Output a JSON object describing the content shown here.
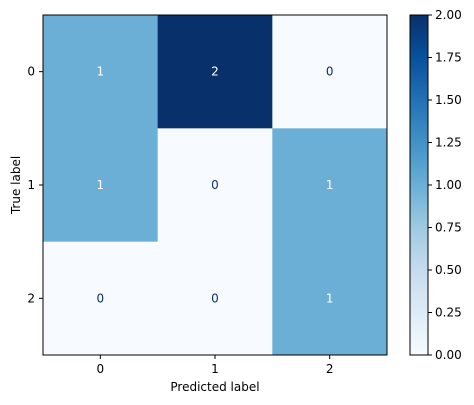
{
  "chart_data": {
    "type": "heatmap",
    "title": "",
    "xlabel": "Predicted label",
    "ylabel": "True label",
    "x_categories": [
      "0",
      "1",
      "2"
    ],
    "y_categories": [
      "0",
      "1",
      "2"
    ],
    "values": [
      [
        1,
        2,
        0
      ],
      [
        1,
        0,
        1
      ],
      [
        0,
        0,
        1
      ]
    ],
    "cell_labels": [
      [
        "1",
        "2",
        "0"
      ],
      [
        "1",
        "0",
        "1"
      ],
      [
        "0",
        "0",
        "1"
      ]
    ],
    "colormap": "Blues",
    "colorbar": {
      "min": 0,
      "max": 2,
      "ticks": [
        "0.00",
        "0.25",
        "0.50",
        "0.75",
        "1.00",
        "1.25",
        "1.50",
        "1.75",
        "2.00"
      ]
    },
    "colors": {
      "low": "#f7fbff",
      "mid": "#6baed6",
      "high": "#08306b",
      "text_on_dark": "#ffffff",
      "text_on_light": "#08306b"
    },
    "grid": false
  }
}
